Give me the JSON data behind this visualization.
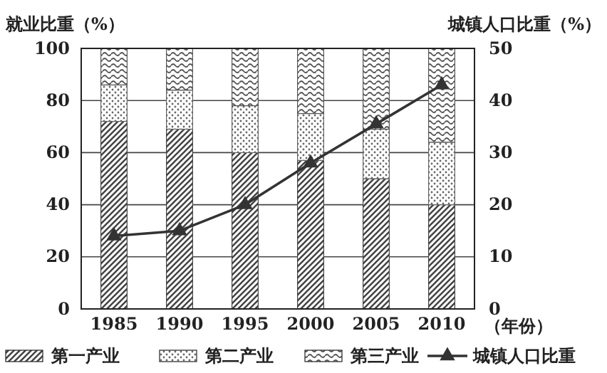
{
  "chart_data": {
    "type": "bar",
    "stacked": true,
    "categories": [
      "1985",
      "1990",
      "1995",
      "2000",
      "2005",
      "2010"
    ],
    "xlabel": "（年份）",
    "ylabel": "就业比重（%）",
    "y2label": "城镇人口比重（%）",
    "series": [
      {
        "name": "第一产业",
        "color": "#444444",
        "values": [
          72,
          69,
          60,
          57,
          50,
          40
        ]
      },
      {
        "name": "第二产业",
        "color": "#666666",
        "values": [
          14,
          15,
          18,
          18,
          19,
          24
        ]
      },
      {
        "name": "第三产业",
        "color": "#555555",
        "values": [
          14,
          16,
          22,
          25,
          31,
          36
        ]
      },
      {
        "name": "城镇人口比重",
        "type": "line",
        "axis": "y2",
        "color": "#333333",
        "marker": "triangle",
        "values": [
          14,
          15,
          20,
          28,
          35.5,
          43
        ]
      }
    ],
    "ylim": [
      0,
      100
    ],
    "yticks": [
      0,
      20,
      40,
      60,
      80,
      100
    ],
    "y2lim": [
      0,
      50
    ],
    "y2ticks": [
      0,
      10,
      20,
      30,
      40,
      50
    ],
    "grid": "y",
    "legend": "bottom"
  }
}
